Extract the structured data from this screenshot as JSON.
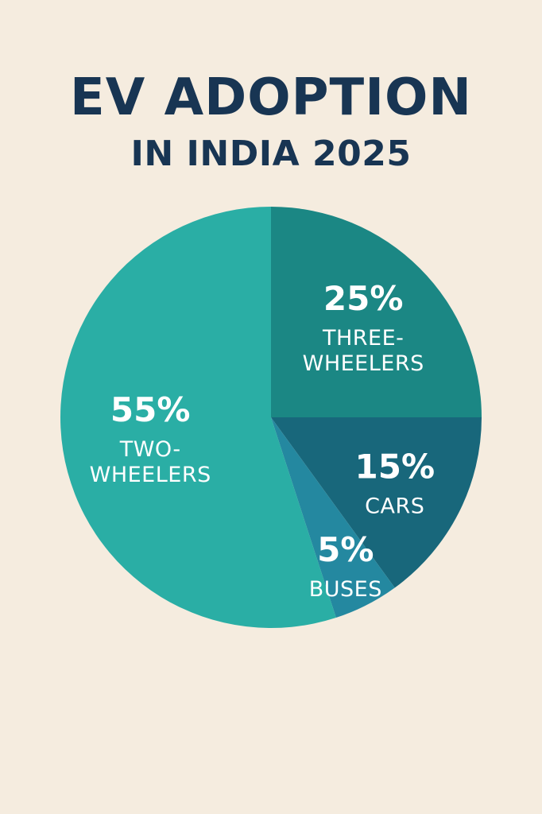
{
  "title": {
    "main": "EV ADOPTION",
    "sub": "IN INDIA 2025"
  },
  "chart_data": {
    "type": "pie",
    "title": "EV ADOPTION IN INDIA 2025",
    "slices": [
      {
        "label_lines": [
          "THREE-",
          "WHEELERS"
        ],
        "value": 25,
        "value_label": "25%",
        "color": "#1b8784"
      },
      {
        "label_lines": [
          "CARS"
        ],
        "value": 15,
        "value_label": "15%",
        "color": "#18677b"
      },
      {
        "label_lines": [
          "BUSES"
        ],
        "value": 5,
        "value_label": "5%",
        "color": "#2488a0"
      },
      {
        "label_lines": [
          "TWO-",
          "WHEELERS"
        ],
        "value": 55,
        "value_label": "55%",
        "color": "#2aaea5"
      }
    ]
  }
}
